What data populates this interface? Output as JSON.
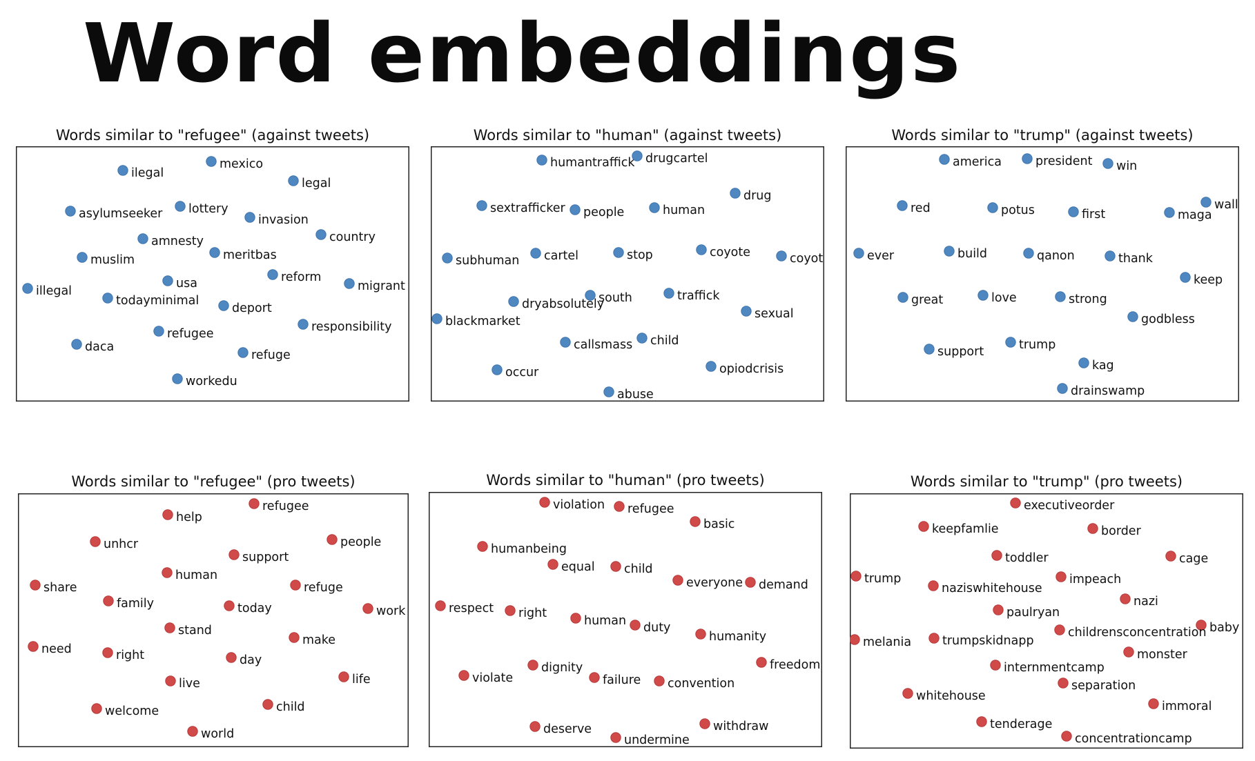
{
  "figure": {
    "title": "Word embeddings"
  },
  "colors": {
    "against": "#4f87c0",
    "against_edge": "#3f74ad",
    "pro": "#d04a4a",
    "pro_edge": "#b83838",
    "frame": "#222222"
  },
  "chart_data": [
    {
      "type": "scatter",
      "title": "Words similar to \"refugee\" (against tweets)",
      "series": "against",
      "xlim": [
        0,
        570
      ],
      "ylim": [
        0,
        370
      ],
      "points": [
        {
          "label": "ilegal",
          "x": 155,
          "y": 35
        },
        {
          "label": "mexico",
          "x": 283,
          "y": 22
        },
        {
          "label": "legal",
          "x": 402,
          "y": 50
        },
        {
          "label": "asylumseeker",
          "x": 79,
          "y": 94
        },
        {
          "label": "lottery",
          "x": 238,
          "y": 87
        },
        {
          "label": "invasion",
          "x": 339,
          "y": 103
        },
        {
          "label": "amnesty",
          "x": 184,
          "y": 134
        },
        {
          "label": "country",
          "x": 442,
          "y": 128
        },
        {
          "label": "muslim",
          "x": 96,
          "y": 161
        },
        {
          "label": "meritbas",
          "x": 288,
          "y": 154
        },
        {
          "label": "usa",
          "x": 220,
          "y": 195
        },
        {
          "label": "reform",
          "x": 372,
          "y": 186
        },
        {
          "label": "illegal",
          "x": 17,
          "y": 206
        },
        {
          "label": "migrant",
          "x": 483,
          "y": 199
        },
        {
          "label": "todayminimal",
          "x": 133,
          "y": 220
        },
        {
          "label": "deport",
          "x": 301,
          "y": 231
        },
        {
          "label": "responsibility",
          "x": 416,
          "y": 258
        },
        {
          "label": "refugee",
          "x": 207,
          "y": 268
        },
        {
          "label": "daca",
          "x": 88,
          "y": 287
        },
        {
          "label": "refuge",
          "x": 329,
          "y": 299
        },
        {
          "label": "workedu",
          "x": 234,
          "y": 337
        }
      ]
    },
    {
      "type": "scatter",
      "title": "Words similar to \"human\" (against tweets)",
      "series": "against",
      "xlim": [
        0,
        570
      ],
      "ylim": [
        0,
        370
      ],
      "points": [
        {
          "label": "humantraffick",
          "x": 161,
          "y": 20
        },
        {
          "label": "drugcartel",
          "x": 299,
          "y": 14
        },
        {
          "label": "sextrafficker",
          "x": 74,
          "y": 86
        },
        {
          "label": "people",
          "x": 209,
          "y": 92
        },
        {
          "label": "human",
          "x": 324,
          "y": 89
        },
        {
          "label": "drug",
          "x": 441,
          "y": 68
        },
        {
          "label": "subhuman",
          "x": 24,
          "y": 162
        },
        {
          "label": "cartel",
          "x": 152,
          "y": 155
        },
        {
          "label": "stop",
          "x": 272,
          "y": 154
        },
        {
          "label": "coyote",
          "x": 392,
          "y": 150
        },
        {
          "label": "coyot",
          "x": 508,
          "y": 159
        },
        {
          "label": "south",
          "x": 231,
          "y": 216
        },
        {
          "label": "traffick",
          "x": 345,
          "y": 213
        },
        {
          "label": "dryabsolutely",
          "x": 120,
          "y": 225
        },
        {
          "label": "sexual",
          "x": 457,
          "y": 239
        },
        {
          "label": "blackmarket",
          "x": 9,
          "y": 250
        },
        {
          "label": "callsmass",
          "x": 195,
          "y": 284
        },
        {
          "label": "child",
          "x": 306,
          "y": 278
        },
        {
          "label": "occur",
          "x": 96,
          "y": 324
        },
        {
          "label": "opiodcrisis",
          "x": 406,
          "y": 319
        },
        {
          "label": "abuse",
          "x": 258,
          "y": 356
        }
      ]
    },
    {
      "type": "scatter",
      "title": "Words similar to \"trump\" (against tweets)",
      "series": "against",
      "xlim": [
        0,
        570
      ],
      "ylim": [
        0,
        370
      ],
      "points": [
        {
          "label": "america",
          "x": 143,
          "y": 19
        },
        {
          "label": "president",
          "x": 263,
          "y": 18
        },
        {
          "label": "win",
          "x": 380,
          "y": 25
        },
        {
          "label": "wall",
          "x": 522,
          "y": 81
        },
        {
          "label": "red",
          "x": 82,
          "y": 86
        },
        {
          "label": "potus",
          "x": 213,
          "y": 89
        },
        {
          "label": "first",
          "x": 330,
          "y": 95
        },
        {
          "label": "maga",
          "x": 469,
          "y": 96
        },
        {
          "label": "ever",
          "x": 19,
          "y": 155
        },
        {
          "label": "build",
          "x": 150,
          "y": 152
        },
        {
          "label": "qanon",
          "x": 265,
          "y": 155
        },
        {
          "label": "thank",
          "x": 383,
          "y": 159
        },
        {
          "label": "keep",
          "x": 492,
          "y": 190
        },
        {
          "label": "great",
          "x": 83,
          "y": 219
        },
        {
          "label": "love",
          "x": 199,
          "y": 216
        },
        {
          "label": "strong",
          "x": 311,
          "y": 218
        },
        {
          "label": "godbless",
          "x": 416,
          "y": 247
        },
        {
          "label": "support",
          "x": 121,
          "y": 294
        },
        {
          "label": "trump",
          "x": 239,
          "y": 284
        },
        {
          "label": "kag",
          "x": 345,
          "y": 314
        },
        {
          "label": "drainswamp",
          "x": 314,
          "y": 351
        }
      ]
    },
    {
      "type": "scatter",
      "title": "Words similar to \"refugee\" (pro tweets)",
      "series": "pro",
      "xlim": [
        0,
        566
      ],
      "ylim": [
        0,
        368
      ],
      "points": [
        {
          "label": "help",
          "x": 217,
          "y": 31
        },
        {
          "label": "refugee",
          "x": 342,
          "y": 15
        },
        {
          "label": "unhcr",
          "x": 112,
          "y": 70
        },
        {
          "label": "people",
          "x": 455,
          "y": 67
        },
        {
          "label": "support",
          "x": 313,
          "y": 89
        },
        {
          "label": "human",
          "x": 216,
          "y": 115
        },
        {
          "label": "share",
          "x": 25,
          "y": 133
        },
        {
          "label": "refuge",
          "x": 402,
          "y": 133
        },
        {
          "label": "family",
          "x": 131,
          "y": 156
        },
        {
          "label": "today",
          "x": 306,
          "y": 163
        },
        {
          "label": "work",
          "x": 507,
          "y": 167
        },
        {
          "label": "stand",
          "x": 220,
          "y": 195
        },
        {
          "label": "make",
          "x": 400,
          "y": 209
        },
        {
          "label": "need",
          "x": 22,
          "y": 222
        },
        {
          "label": "right",
          "x": 130,
          "y": 231
        },
        {
          "label": "day",
          "x": 309,
          "y": 238
        },
        {
          "label": "live",
          "x": 221,
          "y": 272
        },
        {
          "label": "life",
          "x": 472,
          "y": 266
        },
        {
          "label": "welcome",
          "x": 114,
          "y": 312
        },
        {
          "label": "child",
          "x": 362,
          "y": 306
        },
        {
          "label": "world",
          "x": 253,
          "y": 345
        }
      ]
    },
    {
      "type": "scatter",
      "title": "Words similar to \"human\" (pro tweets)",
      "series": "pro",
      "xlim": [
        0,
        570
      ],
      "ylim": [
        0,
        370
      ],
      "points": [
        {
          "label": "violation",
          "x": 168,
          "y": 15
        },
        {
          "label": "refugee",
          "x": 276,
          "y": 21
        },
        {
          "label": "basic",
          "x": 386,
          "y": 43
        },
        {
          "label": "humanbeing",
          "x": 78,
          "y": 79
        },
        {
          "label": "equal",
          "x": 180,
          "y": 105
        },
        {
          "label": "child",
          "x": 271,
          "y": 108
        },
        {
          "label": "everyone",
          "x": 361,
          "y": 128
        },
        {
          "label": "demand",
          "x": 466,
          "y": 131
        },
        {
          "label": "respect",
          "x": 17,
          "y": 165
        },
        {
          "label": "right",
          "x": 118,
          "y": 172
        },
        {
          "label": "human",
          "x": 213,
          "y": 183
        },
        {
          "label": "duty",
          "x": 299,
          "y": 193
        },
        {
          "label": "humanity",
          "x": 394,
          "y": 206
        },
        {
          "label": "freedom",
          "x": 482,
          "y": 247
        },
        {
          "label": "dignity",
          "x": 151,
          "y": 251
        },
        {
          "label": "violate",
          "x": 51,
          "y": 266
        },
        {
          "label": "failure",
          "x": 240,
          "y": 269
        },
        {
          "label": "convention",
          "x": 334,
          "y": 274
        },
        {
          "label": "deserve",
          "x": 154,
          "y": 340
        },
        {
          "label": "withdraw",
          "x": 400,
          "y": 336
        },
        {
          "label": "undermine",
          "x": 271,
          "y": 356
        }
      ]
    },
    {
      "type": "scatter",
      "title": "Words similar to \"trump\" (pro tweets)",
      "series": "pro",
      "xlim": [
        0,
        570
      ],
      "ylim": [
        0,
        370
      ],
      "points": [
        {
          "label": "executiveorder",
          "x": 240,
          "y": 14
        },
        {
          "label": "keepfamlie",
          "x": 107,
          "y": 48
        },
        {
          "label": "border",
          "x": 352,
          "y": 51
        },
        {
          "label": "toddler",
          "x": 213,
          "y": 90
        },
        {
          "label": "cage",
          "x": 465,
          "y": 91
        },
        {
          "label": "trump",
          "x": 9,
          "y": 120
        },
        {
          "label": "naziswhitehouse",
          "x": 121,
          "y": 134
        },
        {
          "label": "impeach",
          "x": 306,
          "y": 121
        },
        {
          "label": "nazi",
          "x": 399,
          "y": 153
        },
        {
          "label": "paulryan",
          "x": 215,
          "y": 169
        },
        {
          "label": "baby",
          "x": 509,
          "y": 191
        },
        {
          "label": "childrensconcentration",
          "x": 304,
          "y": 198
        },
        {
          "label": "melania",
          "x": 7,
          "y": 212
        },
        {
          "label": "trumpskidnapp",
          "x": 122,
          "y": 210
        },
        {
          "label": "monster",
          "x": 404,
          "y": 230
        },
        {
          "label": "internmentcamp",
          "x": 211,
          "y": 249
        },
        {
          "label": "separation",
          "x": 309,
          "y": 275
        },
        {
          "label": "whitehouse",
          "x": 84,
          "y": 290
        },
        {
          "label": "immoral",
          "x": 440,
          "y": 305
        },
        {
          "label": "tenderage",
          "x": 191,
          "y": 331
        },
        {
          "label": "concentrationcamp",
          "x": 314,
          "y": 352
        }
      ]
    }
  ]
}
